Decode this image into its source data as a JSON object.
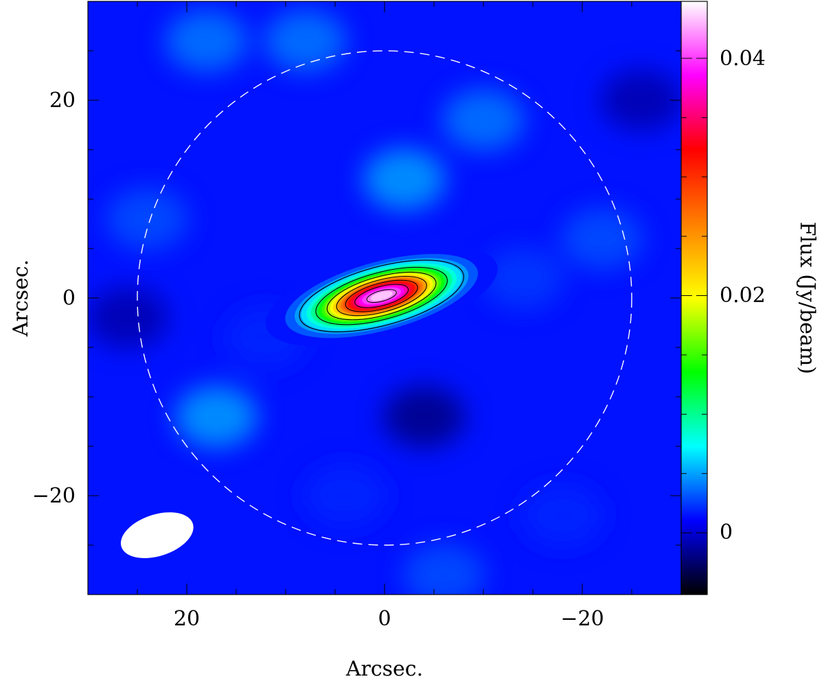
{
  "chart_data": {
    "type": "heatmap",
    "title": "",
    "xlabel": "Arcsec.",
    "ylabel": "Arcsec.",
    "xlim": [
      30,
      -30
    ],
    "ylim": [
      -30,
      30
    ],
    "x_axis_reversed": true,
    "x_ticks": [
      20,
      0,
      -20
    ],
    "x_tick_labels": [
      "20",
      "0",
      "−20"
    ],
    "y_ticks": [
      20,
      0,
      -20
    ],
    "y_tick_labels": [
      "20",
      "0",
      "−20"
    ],
    "grid": false,
    "colorbar": {
      "label": "Flux (Jy/beam)",
      "range": [
        -0.0052,
        0.0448
      ],
      "ticks": [
        0,
        0.02,
        0.04
      ],
      "tick_labels": [
        "0",
        "0.02",
        "0.04"
      ],
      "colormap": [
        "#000000",
        "#0000ff",
        "#00ffff",
        "#00ff00",
        "#ffff00",
        "#ff7f00",
        "#ff0000",
        "#ff00ff",
        "#ffffff"
      ]
    },
    "source": {
      "x": 0.3,
      "y": 0.2,
      "peak_flux": 0.045,
      "major_axis_arcsec": 7.5,
      "minor_axis_arcsec": 2.6,
      "position_angle_deg": -15
    },
    "contours": {
      "levels": [
        0.006,
        0.012,
        0.018,
        0.024,
        0.03,
        0.036,
        0.042
      ],
      "color": "#000000"
    },
    "primary_beam_circle": {
      "center": [
        0,
        0
      ],
      "radius_arcsec": 25,
      "style": "dashed",
      "color": "#ffffff"
    },
    "synthesized_beam": {
      "center": [
        23.0,
        -24.0
      ],
      "major_arcsec": 7.6,
      "minor_arcsec": 4.2,
      "position_angle_deg": -18,
      "color": "#ffffff"
    },
    "background_level": 0.0015
  }
}
